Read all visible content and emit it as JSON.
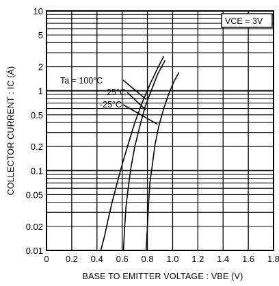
{
  "chart_data": {
    "type": "line",
    "title": "",
    "xlabel": "BASE TO EMITTER VOLTAGE : VBE (V)",
    "ylabel": "COLLECTOR CURRENT : IC (A)",
    "xlim": [
      0,
      1.8
    ],
    "ylim": [
      0.01,
      10
    ],
    "y_scale": "log",
    "grid": true,
    "x_ticks": [
      "0",
      "0.2",
      "0.4",
      "0.6",
      "0.8",
      "1.0",
      "1.2",
      "1.4",
      "1.6",
      "1.8"
    ],
    "y_ticks": [
      "0.01",
      "0.02",
      "0.05",
      "0.1",
      "0.2",
      "0.5",
      "1",
      "2",
      "5",
      "10"
    ],
    "condition_label": "VCE = 3V",
    "series_label_prefix": "Ta = ",
    "series": [
      {
        "name": "100°C",
        "x": [
          0.43,
          0.46,
          0.49,
          0.52,
          0.56,
          0.6,
          0.65,
          0.7,
          0.76,
          0.82,
          0.88,
          0.93
        ],
        "y": [
          0.01,
          0.015,
          0.025,
          0.04,
          0.07,
          0.12,
          0.22,
          0.4,
          0.72,
          1.2,
          1.9,
          2.7
        ]
      },
      {
        "name": "25°C",
        "x": [
          0.61,
          0.62,
          0.63,
          0.65,
          0.67,
          0.7,
          0.74,
          0.78,
          0.83,
          0.88,
          0.94
        ],
        "y": [
          0.01,
          0.02,
          0.035,
          0.065,
          0.11,
          0.2,
          0.36,
          0.62,
          1.0,
          1.6,
          2.4
        ]
      },
      {
        "name": "-25°C",
        "x": [
          0.79,
          0.8,
          0.81,
          0.82,
          0.84,
          0.86,
          0.89,
          0.93,
          0.97,
          1.01,
          1.05
        ],
        "y": [
          0.01,
          0.02,
          0.04,
          0.07,
          0.12,
          0.21,
          0.36,
          0.6,
          0.92,
          1.3,
          1.7
        ]
      }
    ]
  }
}
